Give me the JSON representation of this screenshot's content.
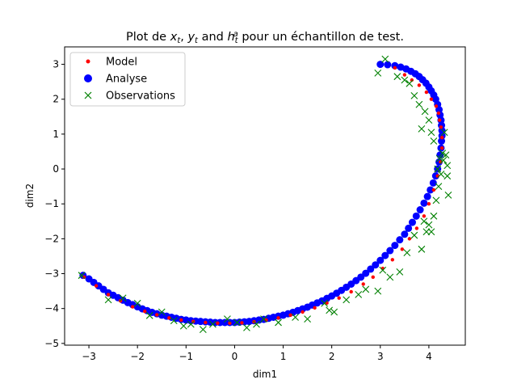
{
  "chart_data": {
    "type": "scatter",
    "title": "Plot de x_t, y_t and h_t^a pour un échantillon de test.",
    "title_parts": [
      "Plot de ",
      "x",
      "t",
      ", ",
      "y",
      "t",
      " and ",
      "h",
      "t",
      "a",
      " pour un échantillon de test."
    ],
    "xlabel": "dim1",
    "ylabel": "dim2",
    "xlim": [
      -3.5,
      4.75
    ],
    "ylim": [
      -5.05,
      3.5
    ],
    "xticks": [
      -3,
      -2,
      -1,
      0,
      1,
      2,
      3,
      4
    ],
    "yticks": [
      -5,
      -4,
      -3,
      -2,
      -1,
      0,
      1,
      2,
      3
    ],
    "legend_position": "top-left",
    "series": [
      {
        "name": "Model",
        "marker": "small-dot",
        "color": "#ff0000",
        "x": [
          -3.1,
          -2.85,
          -2.6,
          -2.35,
          -2.1,
          -1.85,
          -1.6,
          -1.35,
          -1.1,
          -0.85,
          -0.6,
          -0.35,
          -0.1,
          0.15,
          0.4,
          0.65,
          0.9,
          1.15,
          1.4,
          1.65,
          1.9,
          2.15,
          2.4,
          2.65,
          2.85,
          3.05,
          3.25,
          3.45,
          3.6,
          3.75,
          3.9,
          4.0,
          4.1,
          4.18,
          4.24,
          4.27,
          4.27,
          4.25,
          4.22,
          4.2,
          4.15,
          4.05,
          3.95,
          3.8,
          3.65,
          3.5,
          3.3
        ],
        "y": [
          -3.1,
          -3.35,
          -3.6,
          -3.78,
          -3.95,
          -4.08,
          -4.18,
          -4.27,
          -4.33,
          -4.37,
          -4.4,
          -4.42,
          -4.42,
          -4.41,
          -4.38,
          -4.33,
          -4.27,
          -4.19,
          -4.1,
          -3.98,
          -3.84,
          -3.7,
          -3.52,
          -3.3,
          -3.1,
          -2.85,
          -2.6,
          -2.3,
          -2.0,
          -1.7,
          -1.35,
          -1.0,
          -0.6,
          -0.2,
          0.2,
          0.6,
          0.9,
          1.2,
          1.4,
          1.6,
          1.8,
          2.0,
          2.2,
          2.4,
          2.55,
          2.7,
          2.9
        ]
      },
      {
        "name": "Analyse",
        "marker": "circle",
        "color": "#0000ff",
        "x": [
          -3.12,
          -3.0,
          -2.9,
          -2.8,
          -2.7,
          -2.6,
          -2.5,
          -2.4,
          -2.3,
          -2.2,
          -2.1,
          -2.0,
          -1.9,
          -1.8,
          -1.7,
          -1.6,
          -1.5,
          -1.4,
          -1.3,
          -1.2,
          -1.1,
          -1.0,
          -0.9,
          -0.8,
          -0.7,
          -0.6,
          -0.5,
          -0.4,
          -0.3,
          -0.2,
          -0.1,
          0.0,
          0.1,
          0.2,
          0.3,
          0.4,
          0.5,
          0.6,
          0.7,
          0.8,
          0.9,
          1.0,
          1.1,
          1.2,
          1.3,
          1.4,
          1.5,
          1.6,
          1.7,
          1.8,
          1.9,
          2.0,
          2.1,
          2.2,
          2.3,
          2.4,
          2.5,
          2.6,
          2.7,
          2.8,
          2.9,
          3.0,
          3.1,
          3.2,
          3.3,
          3.4,
          3.5,
          3.58,
          3.66,
          3.74,
          3.82,
          3.9,
          3.97,
          4.03,
          4.09,
          4.14,
          4.18,
          4.21,
          4.23,
          4.25,
          4.26,
          4.27,
          4.27,
          4.26,
          4.25,
          4.23,
          4.21,
          4.18,
          4.14,
          4.1,
          4.05,
          4.0,
          3.94,
          3.87,
          3.8,
          3.72,
          3.63,
          3.53,
          3.42,
          3.3,
          3.15,
          3.0
        ],
        "y": [
          -3.05,
          -3.15,
          -3.25,
          -3.35,
          -3.45,
          -3.55,
          -3.62,
          -3.69,
          -3.76,
          -3.83,
          -3.89,
          -3.95,
          -4.01,
          -4.06,
          -4.11,
          -4.15,
          -4.19,
          -4.22,
          -4.25,
          -4.28,
          -4.31,
          -4.33,
          -4.35,
          -4.36,
          -4.37,
          -4.38,
          -4.39,
          -4.4,
          -4.4,
          -4.4,
          -4.4,
          -4.4,
          -4.39,
          -4.38,
          -4.37,
          -4.35,
          -4.33,
          -4.31,
          -4.28,
          -4.25,
          -4.22,
          -4.19,
          -4.15,
          -4.11,
          -4.06,
          -4.01,
          -3.96,
          -3.9,
          -3.84,
          -3.78,
          -3.71,
          -3.64,
          -3.56,
          -3.48,
          -3.39,
          -3.3,
          -3.2,
          -3.1,
          -2.99,
          -2.87,
          -2.75,
          -2.62,
          -2.48,
          -2.34,
          -2.19,
          -2.03,
          -1.87,
          -1.7,
          -1.53,
          -1.35,
          -1.17,
          -0.98,
          -0.79,
          -0.6,
          -0.4,
          -0.2,
          0.0,
          0.2,
          0.4,
          0.6,
          0.8,
          0.95,
          1.1,
          1.25,
          1.4,
          1.55,
          1.7,
          1.85,
          2.0,
          2.12,
          2.24,
          2.35,
          2.46,
          2.56,
          2.65,
          2.73,
          2.8,
          2.87,
          2.92,
          2.96,
          2.99,
          3.0
        ]
      },
      {
        "name": "Observations",
        "marker": "x",
        "color": "#008000",
        "x": [
          -3.15,
          -2.6,
          -2.3,
          -2.0,
          -1.75,
          -1.5,
          -1.25,
          -1.05,
          -0.9,
          -0.65,
          -0.45,
          -0.15,
          0.05,
          0.25,
          0.45,
          0.6,
          0.9,
          1.25,
          1.5,
          1.85,
          1.95,
          2.05,
          2.3,
          2.55,
          2.7,
          2.95,
          3.05,
          3.2,
          3.4,
          3.55,
          3.7,
          3.85,
          3.9,
          3.95,
          4.0,
          4.05,
          4.1,
          4.15,
          4.2,
          4.25,
          4.3,
          4.35,
          4.38,
          4.4,
          4.38,
          4.32,
          4.28,
          4.22,
          4.18,
          4.1,
          4.05,
          4.0,
          3.92,
          3.85,
          3.8,
          3.7,
          3.6,
          3.5,
          3.35,
          3.1,
          2.95
        ],
        "y": [
          -3.05,
          -3.75,
          -3.7,
          -3.85,
          -4.2,
          -4.1,
          -4.35,
          -4.5,
          -4.45,
          -4.6,
          -4.45,
          -4.3,
          -4.4,
          -4.55,
          -4.45,
          -4.3,
          -4.4,
          -4.25,
          -4.3,
          -3.85,
          -4.05,
          -4.1,
          -3.75,
          -3.6,
          -3.45,
          -3.5,
          -2.9,
          -3.1,
          -2.95,
          -2.4,
          -1.9,
          -2.3,
          -1.5,
          -1.8,
          -1.6,
          -1.8,
          -1.35,
          -0.9,
          -0.5,
          -0.15,
          0.25,
          0.4,
          -0.2,
          -0.75,
          0.1,
          1.05,
          0.45,
          0.3,
          0.0,
          0.8,
          1.05,
          1.4,
          1.65,
          1.15,
          1.85,
          2.1,
          2.45,
          2.55,
          2.65,
          3.15,
          2.75
        ]
      }
    ]
  }
}
